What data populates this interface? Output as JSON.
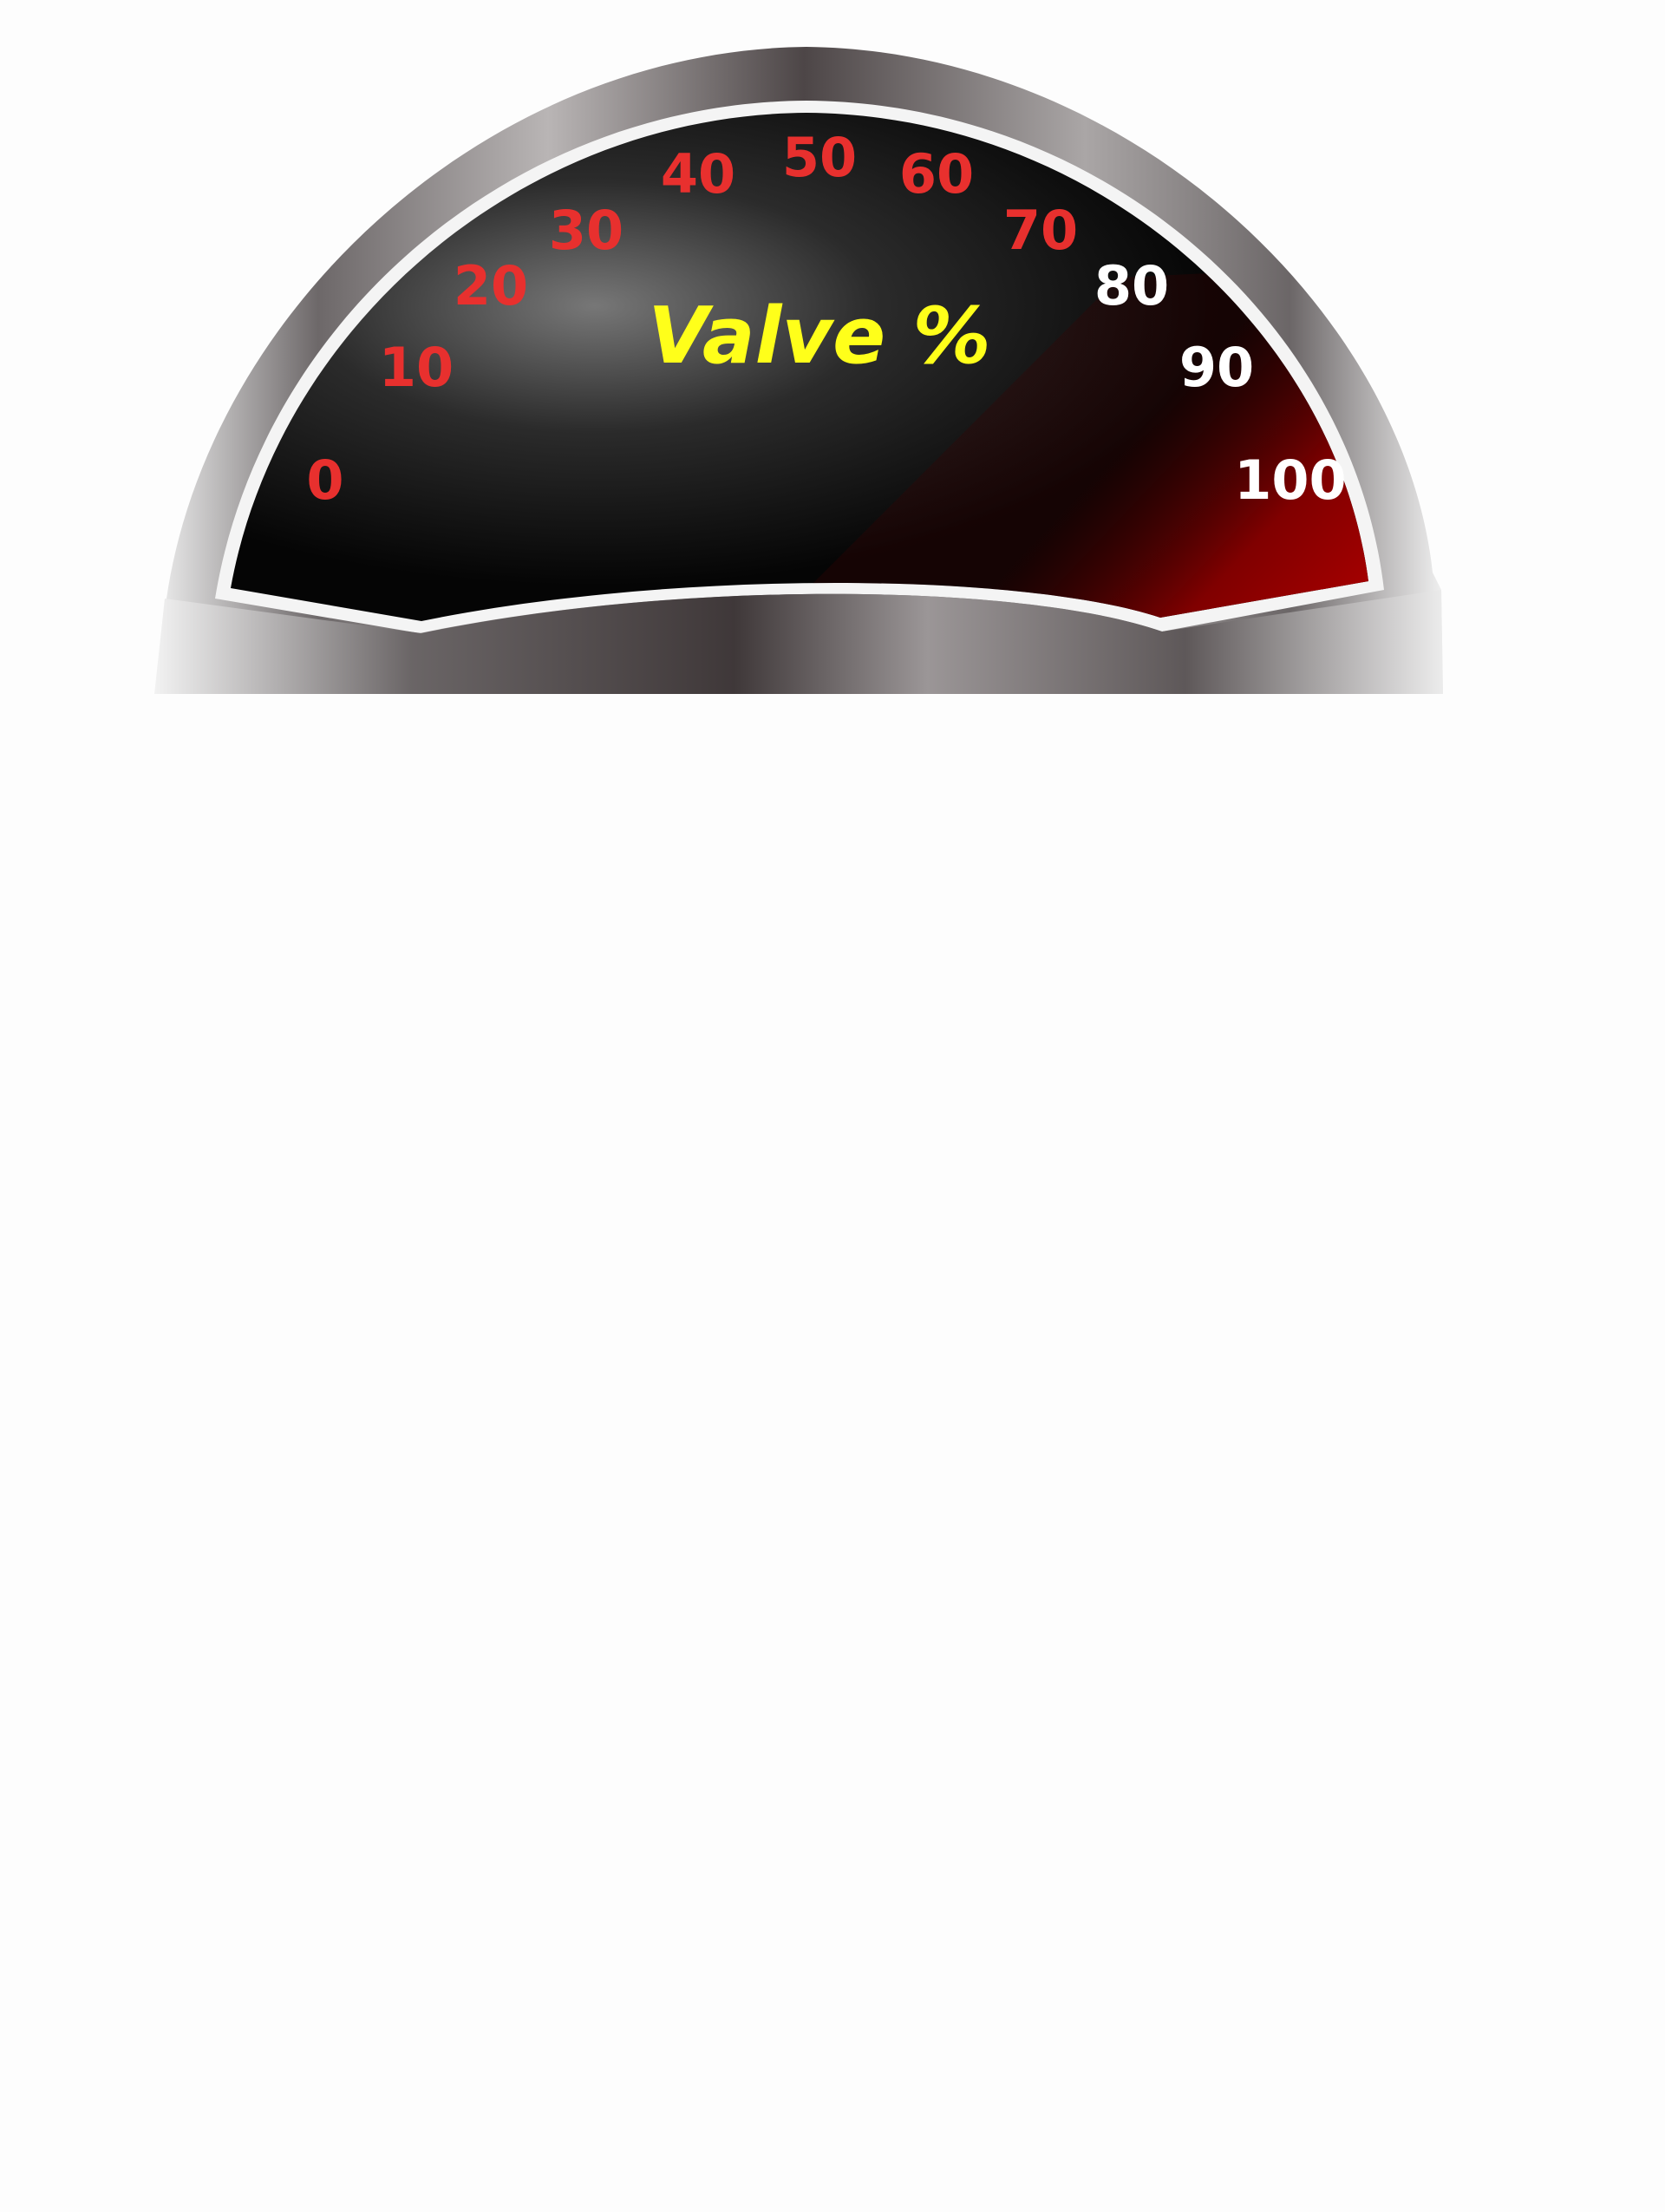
{
  "gauge": {
    "title": "Valve %",
    "tick_labels": [
      "0",
      "10",
      "20",
      "30",
      "40",
      "50",
      "60",
      "70",
      "80",
      "90",
      "100"
    ],
    "tick_colors": [
      "#e8302e",
      "#e8302e",
      "#e8302e",
      "#e8302e",
      "#e8302e",
      "#e8302e",
      "#e8302e",
      "#e8302e",
      "#ffffff",
      "#ffffff",
      "#ffffff"
    ],
    "title_color": "#ffff1a",
    "face_color": "#000000",
    "zone_color": "#b00000",
    "bezel_color": "#8a8586",
    "danger_zone_start": 80
  }
}
